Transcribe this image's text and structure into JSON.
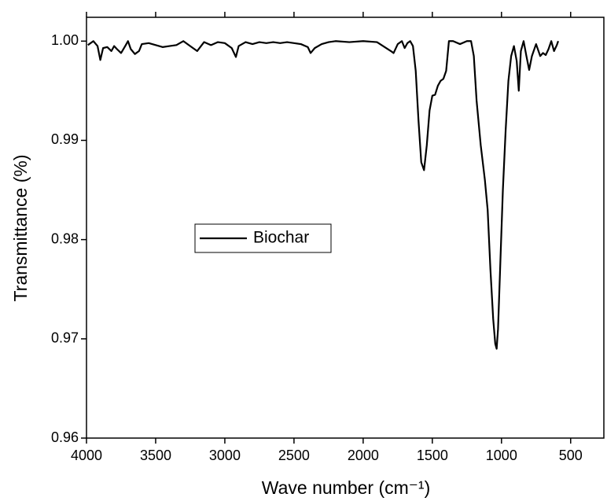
{
  "chart_data": {
    "type": "line",
    "x_label": "Wave number (cm⁻¹)",
    "y_label": "Transmittance (%)",
    "x": [
      3990,
      3950,
      3920,
      3900,
      3880,
      3850,
      3820,
      3800,
      3780,
      3750,
      3720,
      3700,
      3680,
      3650,
      3620,
      3600,
      3550,
      3500,
      3450,
      3400,
      3350,
      3300,
      3250,
      3200,
      3150,
      3100,
      3050,
      3000,
      2950,
      2920,
      2900,
      2850,
      2800,
      2750,
      2700,
      2650,
      2600,
      2550,
      2500,
      2450,
      2400,
      2380,
      2350,
      2300,
      2250,
      2200,
      2100,
      2000,
      1900,
      1800,
      1780,
      1750,
      1720,
      1700,
      1680,
      1660,
      1640,
      1620,
      1600,
      1580,
      1560,
      1540,
      1520,
      1500,
      1480,
      1460,
      1440,
      1420,
      1400,
      1380,
      1350,
      1300,
      1250,
      1220,
      1200,
      1180,
      1150,
      1120,
      1100,
      1080,
      1060,
      1045,
      1035,
      1025,
      1010,
      990,
      970,
      950,
      930,
      910,
      890,
      875,
      860,
      840,
      820,
      800,
      780,
      750,
      720,
      700,
      680,
      660,
      640,
      620,
      600,
      590
    ],
    "series": [
      {
        "name": "Biochar",
        "color": "#000000",
        "values": [
          0.9996,
          1.0,
          0.9995,
          0.9981,
          0.9993,
          0.9994,
          0.999,
          0.9995,
          0.9992,
          0.9988,
          0.9995,
          1.0,
          0.9992,
          0.9987,
          0.999,
          0.9997,
          0.9998,
          0.9996,
          0.9994,
          0.9995,
          0.9996,
          1.0,
          0.9995,
          0.999,
          0.9999,
          0.9996,
          0.9999,
          0.9998,
          0.9993,
          0.9984,
          0.9995,
          0.9999,
          0.9997,
          0.9999,
          0.9998,
          0.9999,
          0.9998,
          0.9999,
          0.9998,
          0.9997,
          0.9994,
          0.9988,
          0.9993,
          0.9997,
          0.9999,
          1.0,
          0.9999,
          1.0,
          0.9999,
          0.999,
          0.9988,
          0.9997,
          1.0,
          0.9993,
          0.9998,
          1.0,
          0.9995,
          0.997,
          0.992,
          0.9878,
          0.987,
          0.9895,
          0.993,
          0.9945,
          0.9946,
          0.9955,
          0.996,
          0.9962,
          0.997,
          1.0,
          1.0,
          0.9997,
          1.0,
          1.0,
          0.9985,
          0.994,
          0.9895,
          0.986,
          0.983,
          0.977,
          0.972,
          0.9695,
          0.969,
          0.971,
          0.977,
          0.985,
          0.991,
          0.996,
          0.9985,
          0.9995,
          0.998,
          0.995,
          0.999,
          1.0,
          0.9985,
          0.9971,
          0.9985,
          0.9997,
          0.9985,
          0.9988,
          0.9986,
          0.9992,
          1.0,
          0.999,
          0.9996,
          1.0
        ]
      }
    ],
    "xlim": [
      4000,
      260
    ],
    "xticks": [
      4000,
      3500,
      3000,
      2500,
      2000,
      1500,
      1000,
      500
    ],
    "ylim": [
      0.96,
      1.0024
    ],
    "yticks": [
      0.96,
      0.97,
      0.98,
      0.99,
      {
        "value": 1,
        "label": "1.00"
      }
    ],
    "legend": "center-left"
  }
}
